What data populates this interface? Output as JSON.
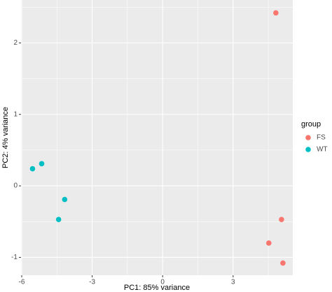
{
  "chart_data": {
    "type": "scatter",
    "xlabel": "PC1: 85% variance",
    "ylabel": "PC2: 4% variance",
    "legend_title": "group",
    "legend_position": "right",
    "grid": true,
    "xlim": [
      -6.03,
      5.54
    ],
    "xticks": [
      -6,
      -3,
      0,
      3
    ],
    "ylim": [
      -1.25,
      2.6
    ],
    "yticks": [
      -1,
      0,
      1,
      2
    ],
    "series": [
      {
        "name": "FS",
        "color": "#F8766D",
        "x": [
          4.82,
          5.06,
          4.52,
          5.12
        ],
        "values": [
          2.42,
          -0.47,
          -0.8,
          -1.08
        ]
      },
      {
        "name": "WT",
        "color": "#00BFC4",
        "x": [
          -5.54,
          -5.15,
          -4.17,
          -4.43
        ],
        "values": [
          0.24,
          0.31,
          -0.19,
          -0.47
        ]
      }
    ]
  }
}
